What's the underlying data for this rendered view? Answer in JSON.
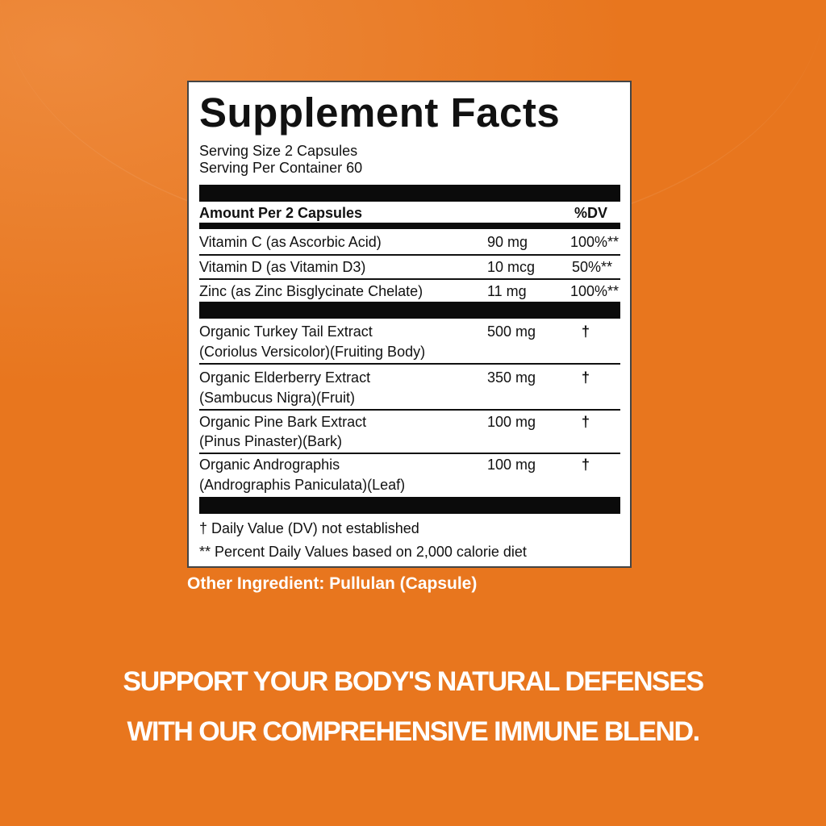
{
  "label": {
    "title": "Supplement Facts",
    "serving_size": "Serving Size 2 Capsules",
    "servings_per_container": "Serving Per Container 60",
    "amount_header": "Amount Per 2 Capsules",
    "dv_header": "%DV",
    "vitamins": [
      {
        "name": "Vitamin C (as Ascorbic Acid)",
        "amount": "90 mg",
        "dv": "100%**"
      },
      {
        "name": "Vitamin D (as Vitamin D3)",
        "amount": "10 mcg",
        "dv": "50%**"
      },
      {
        "name": "Zinc (as Zinc Bisglycinate Chelate)",
        "amount": "11 mg",
        "dv": "100%**"
      }
    ],
    "extracts": [
      {
        "name": "Organic Turkey Tail Extract",
        "detail": "(Coriolus Versicolor)(Fruiting Body)",
        "amount": "500 mg",
        "dv": "†"
      },
      {
        "name": "Organic Elderberry Extract",
        "detail": "(Sambucus Nigra)(Fruit)",
        "amount": "350 mg",
        "dv": "†"
      },
      {
        "name": "Organic Pine Bark Extract",
        "detail": "(Pinus Pinaster)(Bark)",
        "amount": "100 mg",
        "dv": "†"
      },
      {
        "name": "Organic Andrographis",
        "detail": "(Andrographis Paniculata)(Leaf)",
        "amount": "100 mg",
        "dv": "†"
      }
    ],
    "footnote_dagger": "† Daily Value (DV) not established",
    "footnote_stars": "** Percent Daily Values based on 2,000 calorie diet"
  },
  "other_ingredient": "Other Ingredient: Pullulan (Capsule)",
  "slogan": [
    "SUPPORT YOUR BODY'S NATURAL DEFENSES",
    "WITH OUR COMPREHENSIVE IMMUNE BLEND."
  ],
  "colors": {
    "background": "#e8761e",
    "text_on_bg": "#ffffff"
  }
}
